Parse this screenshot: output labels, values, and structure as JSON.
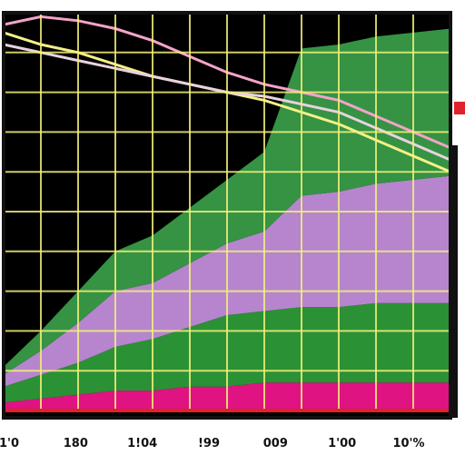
{
  "chart_data": {
    "type": "area",
    "grid": true,
    "legend": "none",
    "x_tick_labels": [
      "1'0",
      "180",
      "1!04",
      "!99",
      "009",
      "1'00",
      "10'%"
    ],
    "ylim": [
      0,
      100
    ],
    "x": [
      0,
      1,
      2,
      3,
      4,
      5,
      6,
      7,
      8,
      9,
      10,
      11,
      12
    ],
    "series": [
      {
        "color": "#f2158c",
        "values": [
          2,
          3,
          4,
          5,
          5,
          6,
          6,
          7,
          7,
          7,
          7,
          7,
          7
        ]
      },
      {
        "color": "#2f9d3a",
        "values": [
          4,
          6,
          8,
          11,
          13,
          15,
          18,
          18,
          19,
          19,
          20,
          20,
          20
        ]
      },
      {
        "color": "#c590e0",
        "values": [
          3,
          6,
          10,
          14,
          14,
          16,
          18,
          20,
          28,
          29,
          30,
          31,
          32
        ]
      },
      {
        "color": "#3aa049",
        "values": [
          2,
          5,
          8,
          10,
          12,
          14,
          16,
          20,
          37,
          37,
          37,
          37,
          37
        ]
      }
    ],
    "lines": [
      {
        "color": "#f3a3c9",
        "values": [
          97,
          99,
          98,
          96,
          93,
          89,
          85,
          82,
          80,
          78,
          74,
          70,
          66
        ]
      },
      {
        "color": "#f3f088",
        "values": [
          95,
          92,
          90,
          87,
          84,
          82,
          80,
          78,
          75,
          72,
          68,
          64,
          60
        ]
      },
      {
        "color": "#e8d2e0",
        "values": [
          92,
          90,
          88,
          86,
          84,
          82,
          80,
          79,
          77,
          75,
          71,
          67,
          63
        ]
      }
    ],
    "colors": {
      "background": "#000000",
      "grid": "#f2ee7a",
      "baseline": "#e0222a",
      "frame": "#111111",
      "accent": "#e0222a"
    }
  }
}
